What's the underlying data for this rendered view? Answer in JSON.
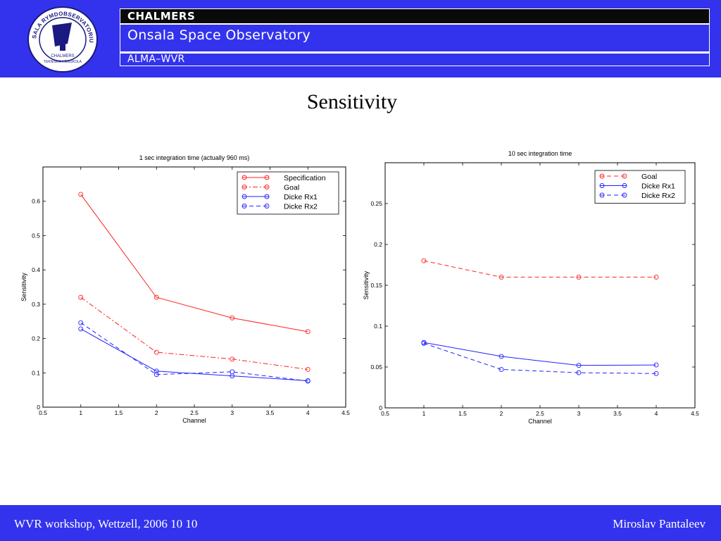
{
  "header": {
    "logo_text": "ONSALA RYMDOBSERVATORIUM",
    "logo_subtext": [
      "CHALMERS",
      "TEKNISKA HÖGSKOLA"
    ],
    "org": "CHALMERS",
    "department": "Onsala Space Observatory",
    "project": "ALMA–WVR",
    "brand_color": "#3333ee"
  },
  "slide": {
    "title": "Sensitivity"
  },
  "footer": {
    "left": "WVR workshop, Wettzell, 2006 10 10",
    "right": "Miroslav Pantaleev"
  },
  "chart_data": [
    {
      "type": "line",
      "title": "1 sec integration time (actually 960 ms)",
      "xlabel": "Channel",
      "ylabel": "Sensitivity",
      "xlim": [
        0.5,
        4.5
      ],
      "ylim": [
        0,
        0.7
      ],
      "xticks": [
        "0.5",
        "1",
        "1.5",
        "2",
        "2.5",
        "3",
        "3.5",
        "4",
        "4.5"
      ],
      "yticks": [
        "0",
        "0.1",
        "0.2",
        "0.3",
        "0.4",
        "0.5",
        "0.6"
      ],
      "grid": false,
      "legend_position": "top-right",
      "x": [
        1,
        2,
        3,
        4
      ],
      "series": [
        {
          "name": "Specification",
          "values": [
            0.62,
            0.32,
            0.26,
            0.22
          ],
          "color": "#ff2222",
          "dash": "solid"
        },
        {
          "name": "Goal",
          "values": [
            0.32,
            0.16,
            0.14,
            0.11
          ],
          "color": "#ff2222",
          "dash": "dashdot"
        },
        {
          "name": "Dicke Rx1",
          "values": [
            0.228,
            0.105,
            0.091,
            0.077
          ],
          "color": "#2222ff",
          "dash": "solid"
        },
        {
          "name": "Dicke Rx2",
          "values": [
            0.246,
            0.095,
            0.103,
            0.076
          ],
          "color": "#2222ff",
          "dash": "dashed"
        }
      ]
    },
    {
      "type": "line",
      "title": "10 sec integration time",
      "xlabel": "Channel",
      "ylabel": "Sensitivity",
      "xlim": [
        0.5,
        4.5
      ],
      "ylim": [
        0,
        0.3
      ],
      "xticks": [
        "0.5",
        "1",
        "1.5",
        "2",
        "2.5",
        "3",
        "3.5",
        "4",
        "4.5"
      ],
      "yticks": [
        "0",
        "0.05",
        "0.1",
        "0.15",
        "0.2",
        "0.25"
      ],
      "grid": false,
      "legend_position": "top-right",
      "x": [
        1,
        2,
        3,
        4
      ],
      "series": [
        {
          "name": "Goal",
          "values": [
            0.18,
            0.16,
            0.16,
            0.16
          ],
          "color": "#ff2222",
          "dash": "dashed"
        },
        {
          "name": "Dicke Rx1",
          "values": [
            0.08,
            0.063,
            0.052,
            0.0525
          ],
          "color": "#2222ff",
          "dash": "solid"
        },
        {
          "name": "Dicke Rx2",
          "values": [
            0.079,
            0.047,
            0.043,
            0.042
          ],
          "color": "#2222ff",
          "dash": "dashed"
        }
      ]
    }
  ]
}
